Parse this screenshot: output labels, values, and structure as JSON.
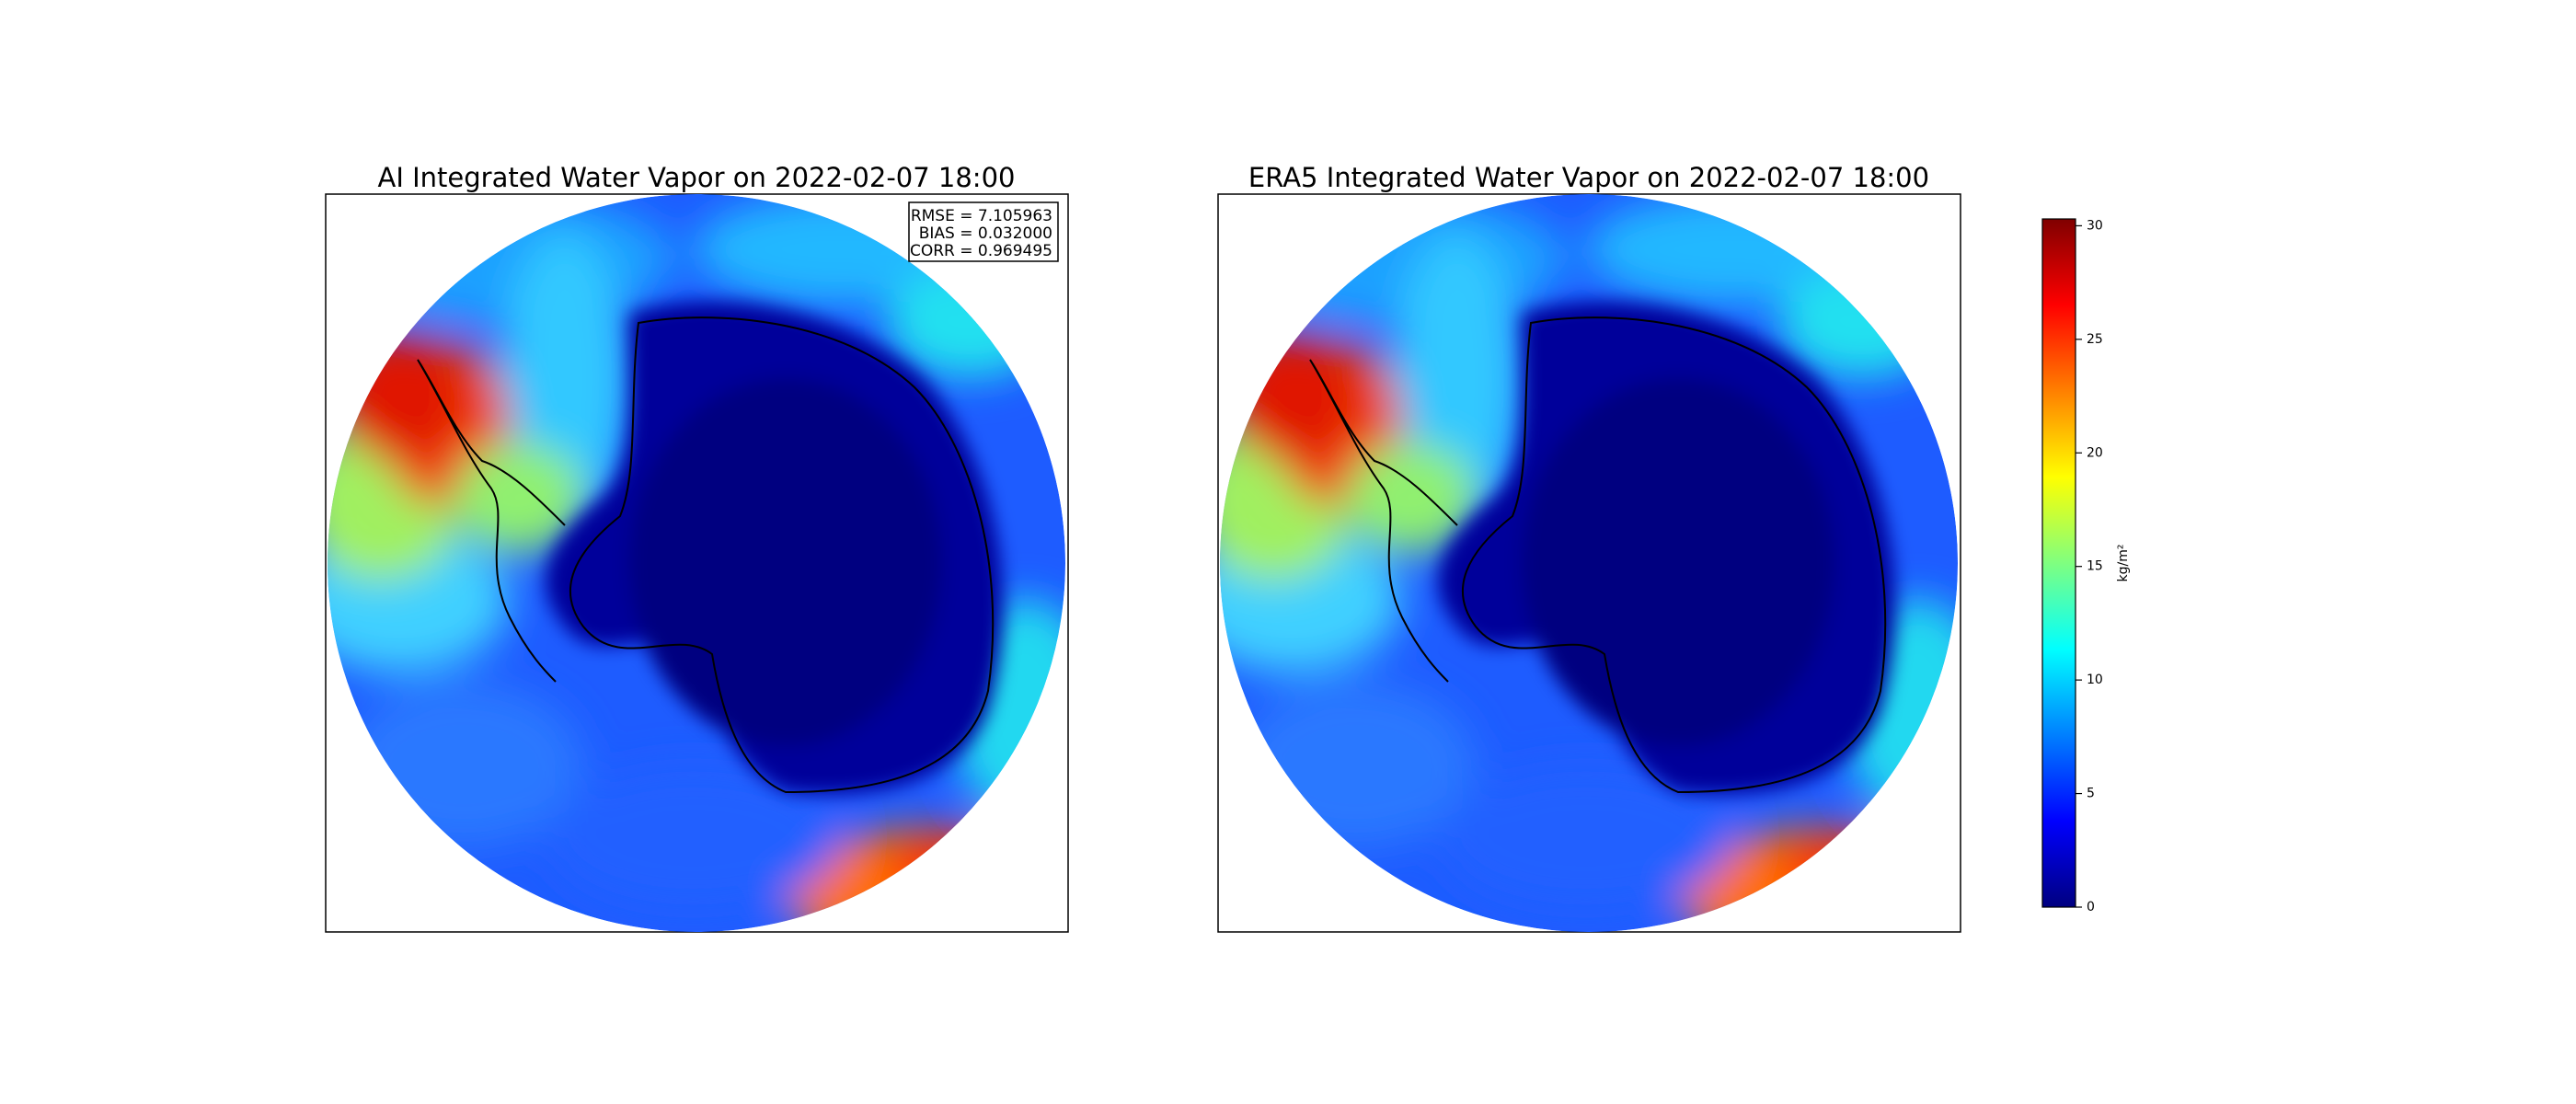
{
  "panels": [
    {
      "title": "AI Integrated Water Vapor on 2022-02-07 18:00",
      "stats": [
        "RMSE = 7.105963",
        "BIAS = 0.032000",
        "CORR = 0.969495"
      ]
    },
    {
      "title": "ERA5 Integrated Water Vapor on 2022-02-07 18:00"
    }
  ],
  "colorbar": {
    "label": "kg/m²",
    "lim": [
      0,
      30.3
    ],
    "ticks": [
      0,
      5,
      10,
      15,
      20,
      25,
      30
    ]
  }
}
